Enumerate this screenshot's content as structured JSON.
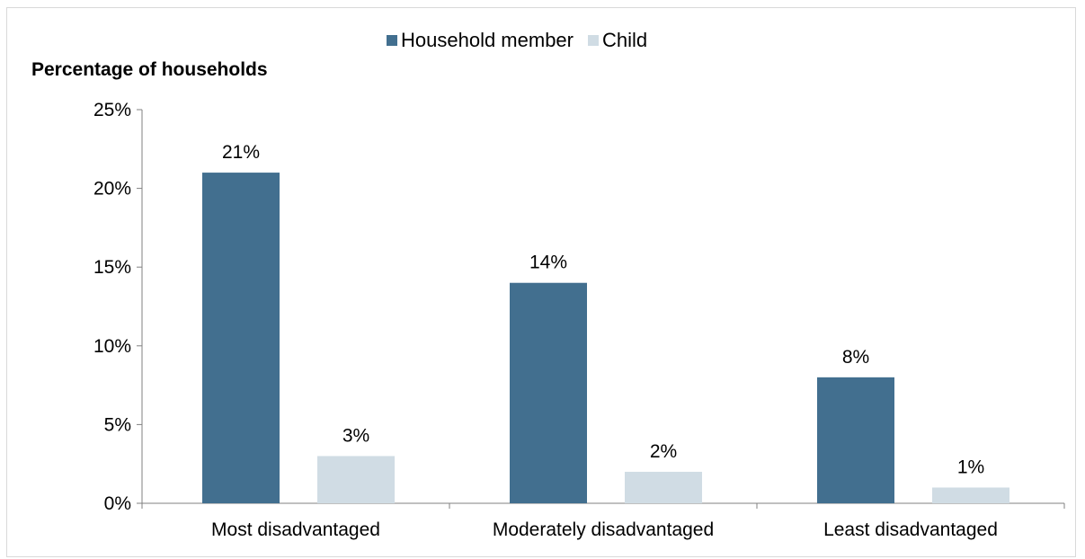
{
  "chart_data": {
    "type": "bar",
    "ylabel": "Percentage of households",
    "categories": [
      "Most disadvantaged",
      "Moderately disadvantaged",
      "Least disadvantaged"
    ],
    "series": [
      {
        "name": "Household member",
        "values": [
          21,
          14,
          8
        ],
        "color": "#426f8f",
        "labels": [
          "21%",
          "14%",
          "8%"
        ]
      },
      {
        "name": "Child",
        "values": [
          3,
          2,
          1
        ],
        "color": "#d0dce4",
        "labels": [
          "3%",
          "2%",
          "1%"
        ]
      }
    ],
    "ylim": [
      0,
      25
    ],
    "yticks": [
      0,
      5,
      10,
      15,
      20,
      25
    ],
    "ytick_labels": [
      "0%",
      "5%",
      "10%",
      "15%",
      "20%",
      "25%"
    ],
    "grid": false,
    "legend_position": "top"
  }
}
